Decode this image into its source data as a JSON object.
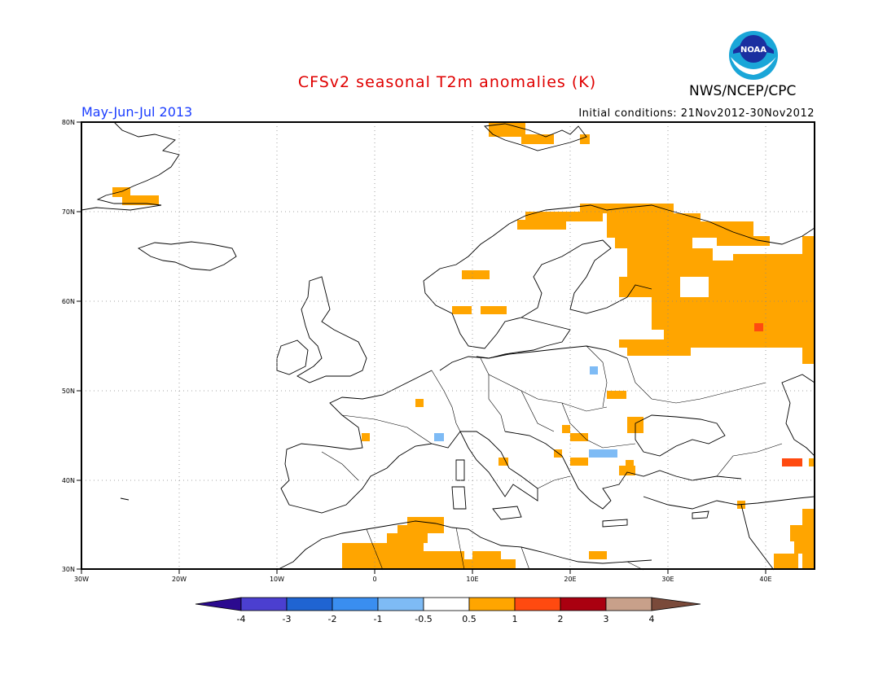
{
  "header": {
    "title": "CFSv2 seasonal T2m anomalies (K)",
    "org": "NWS/NCEP/CPC",
    "logo_text": "NOAA",
    "season": "May-Jun-Jul 2013",
    "initial_conditions": "Initial conditions: 21Nov2012-30Nov2012"
  },
  "map": {
    "lon_ticks": [
      "30W",
      "20W",
      "10W",
      "0",
      "10E",
      "20E",
      "30E",
      "40E"
    ],
    "lat_ticks": [
      "30N",
      "40N",
      "50N",
      "60N",
      "70N",
      "80N"
    ],
    "extent": {
      "lon": [
        -30,
        45
      ],
      "lat": [
        30,
        80
      ]
    }
  },
  "colorbar": {
    "labels": [
      "-4",
      "-3",
      "-2",
      "-1",
      "-0.5",
      "0.5",
      "1",
      "2",
      "3",
      "4"
    ],
    "colors": [
      "#2b0a8f",
      "#4b3fd0",
      "#1f64d2",
      "#3a8ef0",
      "#7ebbf5",
      "#ffffff",
      "#ffa500",
      "#ff4a10",
      "#aa0010",
      "#c8a08a",
      "#7a4a3a"
    ]
  },
  "colors": {
    "warm": "#ffa500",
    "hot": "#ff4a10",
    "cool": "#7ebbf5"
  }
}
